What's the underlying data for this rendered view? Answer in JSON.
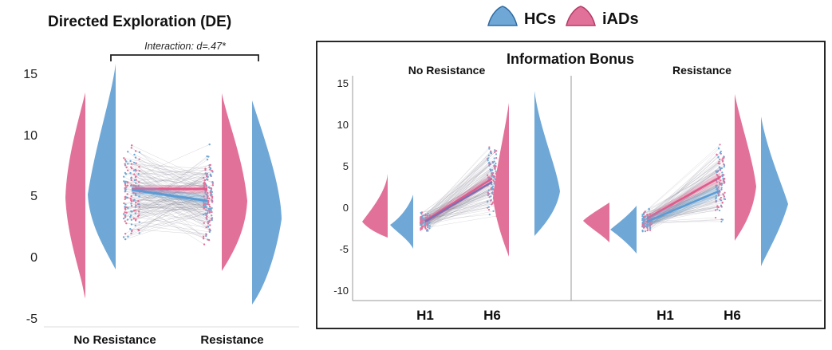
{
  "legend": {
    "entries": [
      {
        "name": "HCs",
        "color": "#6fa8d6"
      },
      {
        "name": "iADs",
        "color": "#e27199"
      }
    ]
  },
  "colors": {
    "hc": "#6fa8d6",
    "iad": "#e27199",
    "hc_line": "#5b9bd5",
    "iad_line": "#e05a8a"
  },
  "chart_data": [
    {
      "type": "violin",
      "title": "Directed Exploration (DE)",
      "annotation": "Interaction: d=.47*",
      "categories": [
        "No Resistance",
        "Resistance"
      ],
      "ylim": [
        -5,
        16
      ],
      "yticks": [
        -5,
        0,
        5,
        10,
        15
      ],
      "series": [
        {
          "name": "iADs",
          "mean": [
            5.3,
            5.3
          ],
          "range": [
            [
              -3.5,
              13.3
            ],
            [
              -1.2,
              13.3
            ]
          ]
        },
        {
          "name": "HCs",
          "mean": [
            5.2,
            4.3
          ],
          "range": [
            [
              -1.1,
              15.8
            ],
            [
              -4.0,
              12.7
            ]
          ]
        }
      ]
    },
    {
      "type": "violin",
      "title": "Information Bonus",
      "panels": [
        "No Resistance",
        "Resistance"
      ],
      "categories": [
        "H1",
        "H6"
      ],
      "ylim": [
        -11,
        16
      ],
      "yticks": [
        -10,
        -5,
        0,
        5,
        10,
        15
      ],
      "series": [
        {
          "name": "iADs",
          "panel": "No Resistance",
          "mean": [
            -1.7,
            3.5
          ],
          "range": [
            [
              -3.6,
              4.0
            ],
            [
              -6.0,
              12.8
            ]
          ]
        },
        {
          "name": "HCs",
          "panel": "No Resistance",
          "mean": [
            -1.7,
            3.0
          ],
          "range": [
            [
              -5.0,
              1.5
            ],
            [
              -3.6,
              14.2
            ]
          ]
        },
        {
          "name": "iADs",
          "panel": "Resistance",
          "mean": [
            -1.7,
            3.6
          ],
          "range": [
            [
              -4.3,
              0.5
            ],
            [
              -4.0,
              13.6
            ]
          ]
        },
        {
          "name": "HCs",
          "panel": "Resistance",
          "mean": [
            -1.9,
            2.0
          ],
          "range": [
            [
              -5.8,
              0.2
            ],
            [
              -7.1,
              11.0
            ]
          ]
        }
      ]
    }
  ]
}
